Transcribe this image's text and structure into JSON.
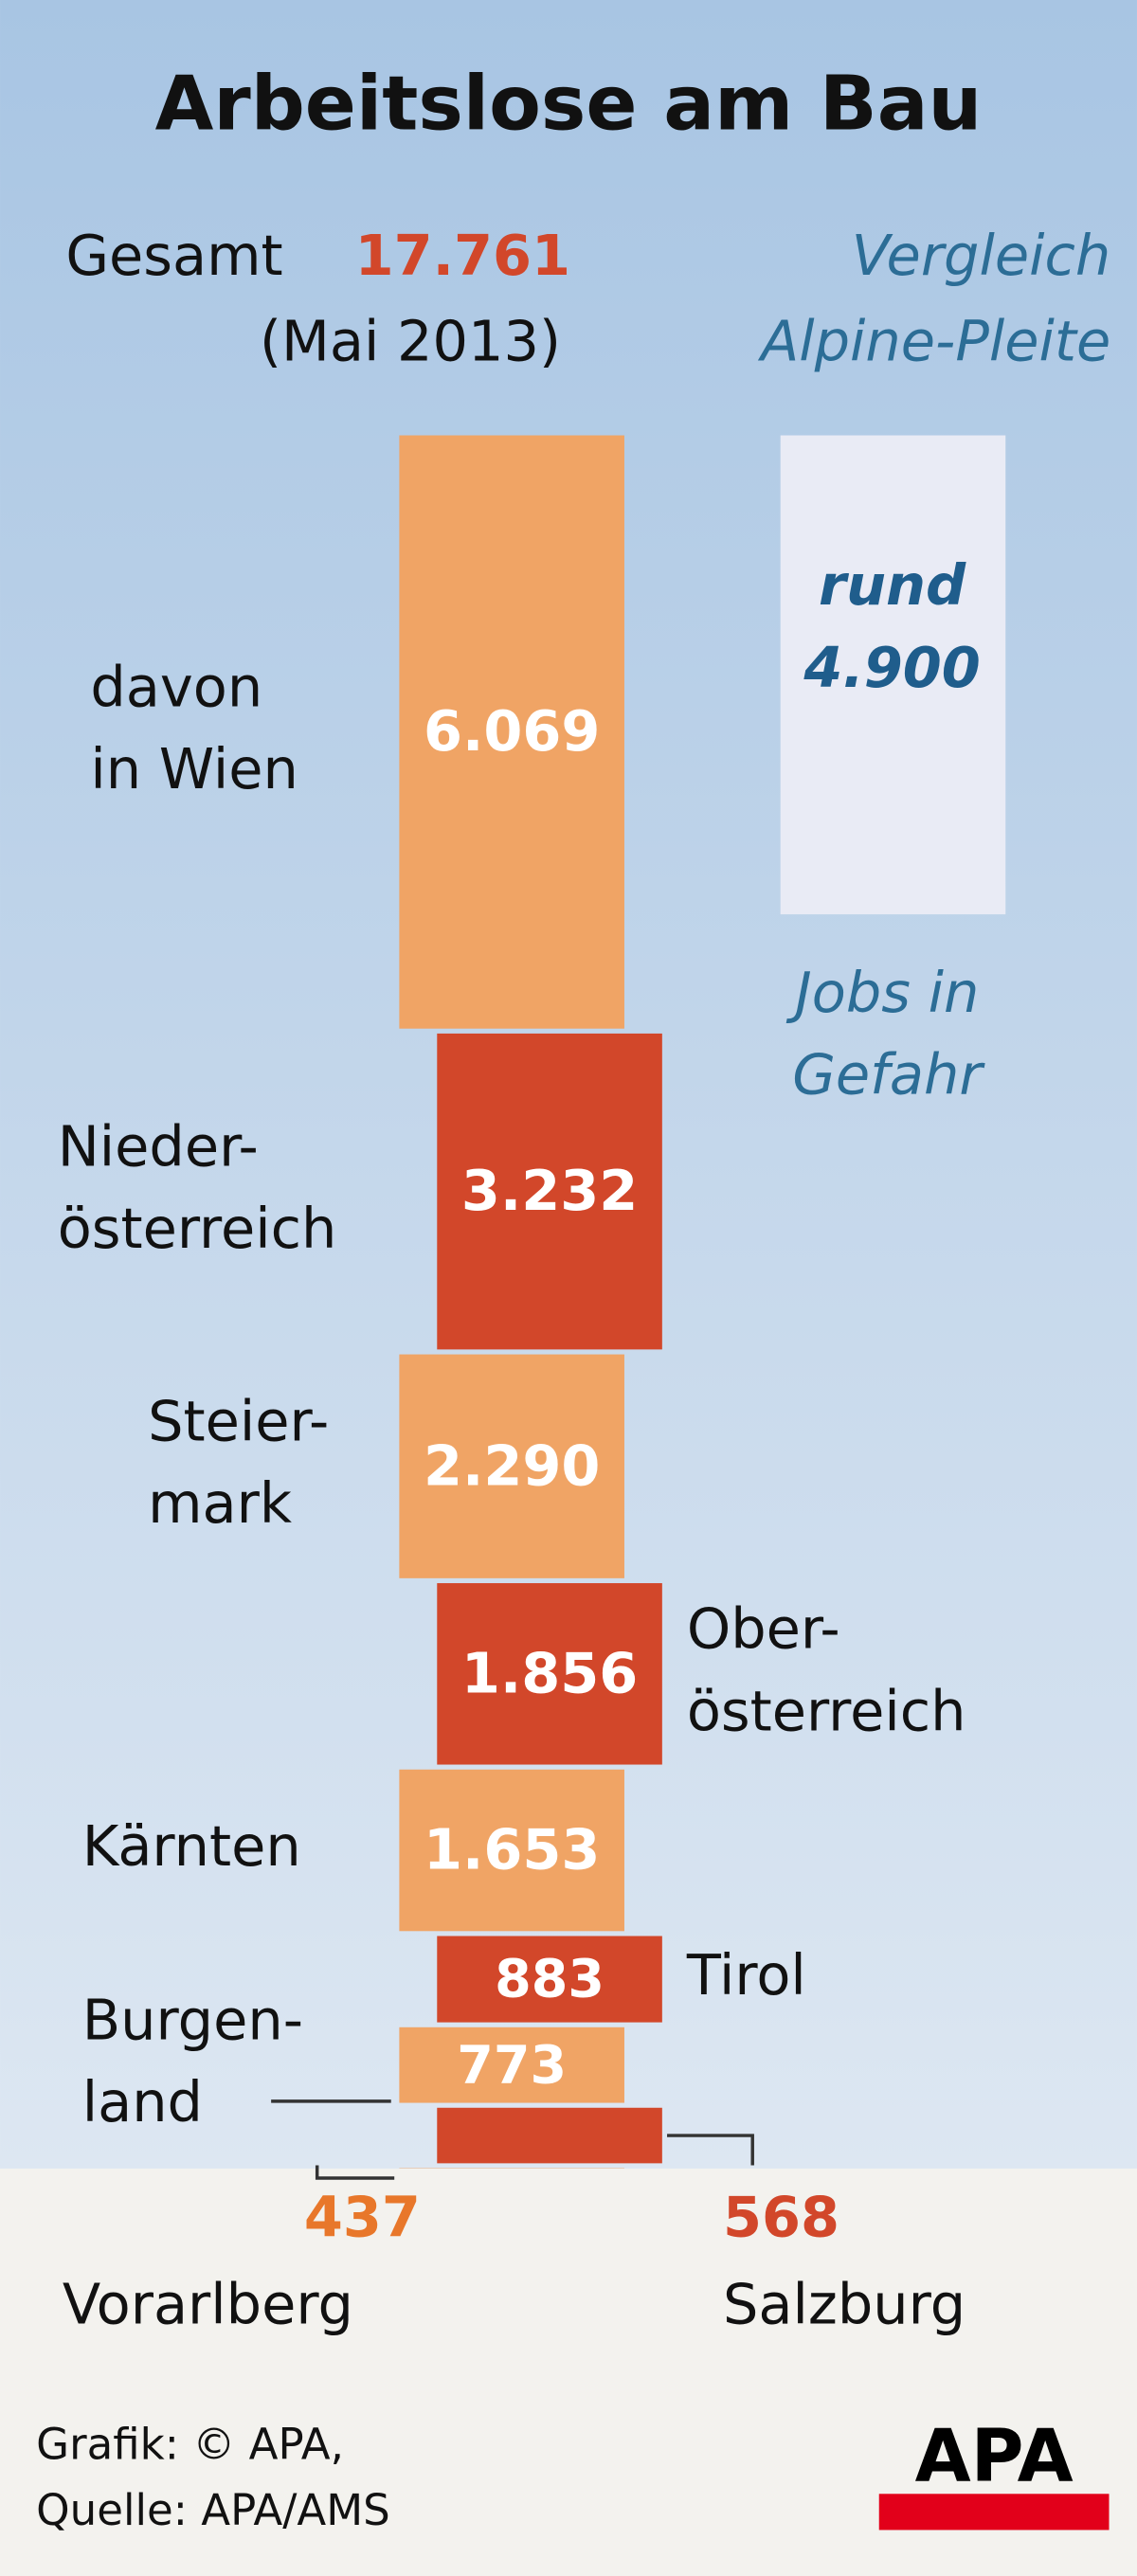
{
  "chart_data": {
    "type": "stacked-block",
    "title": "Arbeitslose am Bau",
    "total_text": "Gesamt",
    "total": {
      "value": 17761,
      "label": "17.761"
    },
    "period": "(Mai 2013)",
    "categories": [
      [
        "davon",
        "in Wien"
      ],
      [
        "Nieder-",
        "österreich"
      ],
      [
        "Steier-",
        "mark"
      ],
      [
        "Ober-",
        "österreich"
      ],
      [
        "Kärnten"
      ],
      [
        "Tirol"
      ],
      [
        "Burgen-",
        "land"
      ],
      [
        "Salzburg"
      ],
      [
        "Vorarlberg"
      ]
    ],
    "values": [
      6069,
      3232,
      2290,
      1856,
      1653,
      883,
      773,
      568,
      437
    ],
    "value_labels": [
      "6.069",
      "3.232",
      "2.290",
      "1.856",
      "1.653",
      "883",
      "773",
      "568",
      "437"
    ],
    "colors": [
      "#f0a465",
      "#d2472a",
      "#f0a465",
      "#d2472a",
      "#f0a465",
      "#d2472a",
      "#f0a465",
      "#d2472a",
      "#f0a465"
    ],
    "comparison": {
      "heading": [
        "Vergleich",
        "Alpine-Pleite"
      ],
      "prefix": "rund",
      "value": 4900,
      "label": "4.900",
      "caption": [
        "Jobs in",
        "Gefahr"
      ],
      "color": "#e9ebf5"
    },
    "footer": {
      "credit": "Grafik: © APA,",
      "source": "Quelle: APA/AMS",
      "logo": "APA"
    }
  }
}
